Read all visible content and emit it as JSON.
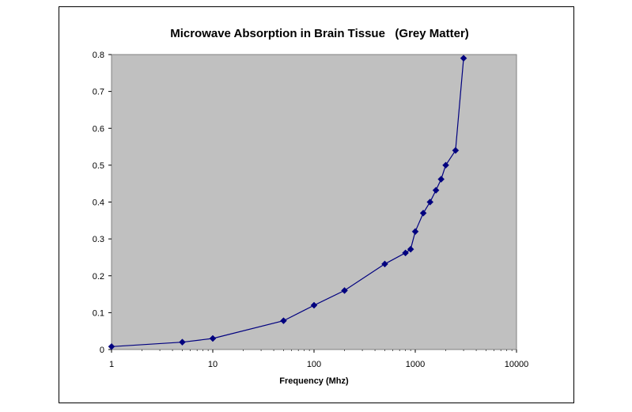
{
  "chart_data": {
    "type": "scatter",
    "title": "Microwave Absorption in Brain Tissue   (Grey Matter)",
    "xlabel": "Frequency (Mhz)",
    "ylabel": "",
    "x_scale": "log",
    "xlim": [
      1,
      10000
    ],
    "ylim": [
      0,
      0.8
    ],
    "x_ticks": [
      "1",
      "10",
      "100",
      "1000",
      "10000"
    ],
    "y_ticks": [
      "0",
      "0.1",
      "0.2",
      "0.3",
      "0.4",
      "0.5",
      "0.6",
      "0.7",
      "0.8"
    ],
    "grid": false,
    "legend": "none",
    "colors": {
      "series": "#00007F",
      "plot_background": "#C0C0C0"
    },
    "series": [
      {
        "x": [
          1,
          5,
          10,
          50,
          100,
          200,
          500,
          800,
          900,
          1000,
          1200,
          1400,
          1600,
          1800,
          2000,
          2500,
          3000
        ],
        "y": [
          0.008,
          0.02,
          0.03,
          0.078,
          0.12,
          0.16,
          0.232,
          0.262,
          0.272,
          0.32,
          0.37,
          0.4,
          0.432,
          0.462,
          0.5,
          0.54,
          0.79
        ]
      }
    ]
  }
}
